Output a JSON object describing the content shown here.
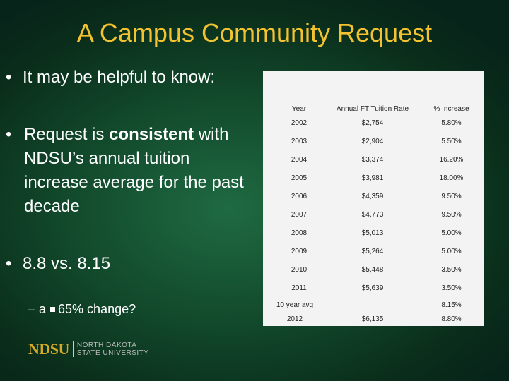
{
  "title": "A Campus Community Request",
  "bullets": {
    "b1": "It may be helpful to know:",
    "b2_pre": "Request is ",
    "b2_bold": "consistent",
    "b2_post": " with NDSU’s annual tuition increase average for the past decade",
    "b3": "8.8 vs. 8.15",
    "sub_prefix": "– a",
    "sub_text": "65% change?"
  },
  "table": {
    "headers": [
      "Year",
      "Annual FT Tuition Rate",
      "% Increase"
    ],
    "rows": [
      [
        "2002",
        "$2,754",
        "5.80%"
      ],
      [
        "2003",
        "$2,904",
        "5.50%"
      ],
      [
        "2004",
        "$3,374",
        "16.20%"
      ],
      [
        "2005",
        "$3,981",
        "18.00%"
      ],
      [
        "2006",
        "$4,359",
        "9.50%"
      ],
      [
        "2007",
        "$4,773",
        "9.50%"
      ],
      [
        "2008",
        "$5,013",
        "5.00%"
      ],
      [
        "2009",
        "$5,264",
        "5.00%"
      ],
      [
        "2010",
        "$5,448",
        "3.50%"
      ],
      [
        "2011",
        "$5,639",
        "3.50%"
      ]
    ],
    "avg_row": [
      "10 year avg",
      "",
      "8.15%"
    ],
    "last_row": [
      "2012",
      "$6,135",
      "8.80%"
    ]
  },
  "logo": {
    "mark": "NDSU",
    "line1": "NORTH DAKOTA",
    "line2": "STATE UNIVERSITY"
  }
}
